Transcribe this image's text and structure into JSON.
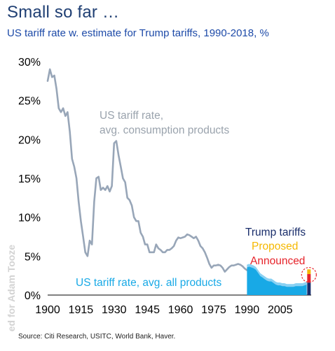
{
  "title": "Small so far …",
  "subtitle": "US tariff rate w. estimate for Trump tariffs, 1990-2018, %",
  "source": "Source: Citi Research, USITC, World Bank, Haver.",
  "watermark": "ed for Adam Tooze",
  "colors": {
    "title": "#1f3f73",
    "subtitle": "#1d4aa8",
    "consumption_line": "#98a6b8",
    "all_products_area": "#18a9e6",
    "all_products_area_light": "#9fd8f4",
    "trump_tariffs": "#1a2e6b",
    "proposed": "#f5b800",
    "announced": "#e6232a",
    "highlight_circle": "#e6232a"
  },
  "chart_data": {
    "type": "line",
    "xlim": [
      1900,
      2019
    ],
    "ylim": [
      0,
      30
    ],
    "x_ticks": [
      "1900",
      "1915",
      "1930",
      "1945",
      "1960",
      "1975",
      "1990",
      "2005"
    ],
    "y_ticks": [
      "0%",
      "5%",
      "10%",
      "15%",
      "20%",
      "25%",
      "30%"
    ],
    "annotations": {
      "consumption_label": [
        "US tariff rate,",
        "avg. consumption products"
      ],
      "all_products_label": "US tariff rate, avg. all products"
    },
    "legend": [
      {
        "label": "Trump tariffs",
        "color": "#1a2e6b"
      },
      {
        "label": "Proposed",
        "color": "#f5b800"
      },
      {
        "label": "Announced",
        "color": "#e6232a"
      }
    ],
    "series": [
      {
        "name": "US tariff rate, avg. consumption products",
        "type": "line",
        "points": [
          [
            1900,
            27.5
          ],
          [
            1901,
            29.0
          ],
          [
            1902,
            28.0
          ],
          [
            1903,
            28.2
          ],
          [
            1904,
            26.5
          ],
          [
            1905,
            24.0
          ],
          [
            1906,
            23.5
          ],
          [
            1907,
            24.0
          ],
          [
            1908,
            23.0
          ],
          [
            1909,
            23.5
          ],
          [
            1910,
            21.0
          ],
          [
            1911,
            17.5
          ],
          [
            1912,
            16.5
          ],
          [
            1913,
            15.0
          ],
          [
            1914,
            12.0
          ],
          [
            1915,
            9.5
          ],
          [
            1916,
            7.5
          ],
          [
            1917,
            5.5
          ],
          [
            1918,
            5.0
          ],
          [
            1919,
            7.0
          ],
          [
            1920,
            6.5
          ],
          [
            1921,
            12.0
          ],
          [
            1922,
            15.0
          ],
          [
            1923,
            15.2
          ],
          [
            1924,
            13.5
          ],
          [
            1925,
            13.8
          ],
          [
            1926,
            13.5
          ],
          [
            1927,
            14.0
          ],
          [
            1928,
            13.3
          ],
          [
            1929,
            14.0
          ],
          [
            1930,
            19.5
          ],
          [
            1931,
            19.8
          ],
          [
            1932,
            18.0
          ],
          [
            1933,
            16.5
          ],
          [
            1934,
            15.0
          ],
          [
            1935,
            14.5
          ],
          [
            1936,
            12.5
          ],
          [
            1937,
            12.2
          ],
          [
            1938,
            11.5
          ],
          [
            1939,
            10.0
          ],
          [
            1940,
            9.5
          ],
          [
            1941,
            9.5
          ],
          [
            1942,
            8.0
          ],
          [
            1943,
            7.5
          ],
          [
            1944,
            6.5
          ],
          [
            1945,
            6.5
          ],
          [
            1946,
            5.5
          ],
          [
            1947,
            5.5
          ],
          [
            1948,
            5.5
          ],
          [
            1949,
            6.5
          ],
          [
            1950,
            6.0
          ],
          [
            1951,
            5.8
          ],
          [
            1952,
            5.5
          ],
          [
            1953,
            5.5
          ],
          [
            1954,
            5.8
          ],
          [
            1955,
            5.8
          ],
          [
            1956,
            6.0
          ],
          [
            1957,
            6.3
          ],
          [
            1958,
            7.0
          ],
          [
            1959,
            7.4
          ],
          [
            1960,
            7.3
          ],
          [
            1961,
            7.4
          ],
          [
            1962,
            7.5
          ],
          [
            1963,
            7.8
          ],
          [
            1964,
            7.7
          ],
          [
            1965,
            7.5
          ],
          [
            1966,
            7.3
          ],
          [
            1967,
            7.5
          ],
          [
            1968,
            7.0
          ],
          [
            1969,
            6.3
          ],
          [
            1970,
            6.0
          ],
          [
            1971,
            5.5
          ],
          [
            1972,
            4.8
          ],
          [
            1973,
            4.0
          ],
          [
            1974,
            3.5
          ],
          [
            1975,
            3.8
          ],
          [
            1976,
            3.8
          ],
          [
            1977,
            3.9
          ],
          [
            1978,
            3.8
          ],
          [
            1979,
            3.5
          ],
          [
            1980,
            3.0
          ],
          [
            1981,
            3.3
          ],
          [
            1982,
            3.6
          ],
          [
            1983,
            3.8
          ],
          [
            1984,
            3.8
          ],
          [
            1985,
            3.9
          ],
          [
            1986,
            4.0
          ],
          [
            1987,
            3.9
          ],
          [
            1988,
            3.7
          ],
          [
            1989,
            3.4
          ],
          [
            1990,
            3.2
          ]
        ]
      },
      {
        "name": "US tariff rate, avg. all products",
        "type": "area",
        "points": [
          [
            1990,
            3.9
          ],
          [
            1991,
            4.0
          ],
          [
            1992,
            3.9
          ],
          [
            1993,
            3.8
          ],
          [
            1994,
            3.6
          ],
          [
            1995,
            3.2
          ],
          [
            1996,
            2.8
          ],
          [
            1997,
            2.6
          ],
          [
            1998,
            2.4
          ],
          [
            1999,
            2.2
          ],
          [
            2000,
            2.1
          ],
          [
            2001,
            2.1
          ],
          [
            2002,
            1.9
          ],
          [
            2003,
            1.7
          ],
          [
            2004,
            1.6
          ],
          [
            2005,
            1.6
          ],
          [
            2006,
            1.5
          ],
          [
            2007,
            1.5
          ],
          [
            2008,
            1.4
          ],
          [
            2009,
            1.4
          ],
          [
            2010,
            1.4
          ],
          [
            2011,
            1.4
          ],
          [
            2012,
            1.5
          ],
          [
            2013,
            1.5
          ],
          [
            2014,
            1.5
          ],
          [
            2015,
            1.5
          ],
          [
            2016,
            1.6
          ],
          [
            2017,
            1.7
          ]
        ]
      }
    ],
    "trump_tariff_bar": {
      "year": 2018,
      "base": 1.6,
      "announced": 1.1,
      "proposed": 0.6
    }
  }
}
